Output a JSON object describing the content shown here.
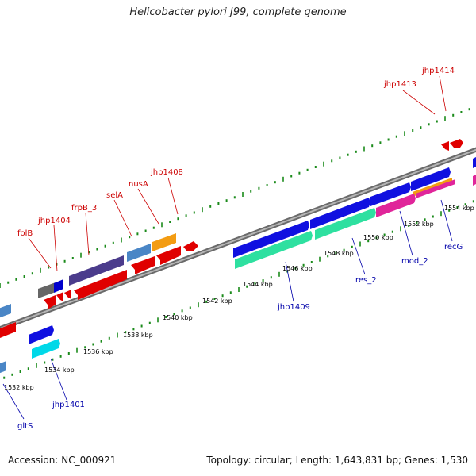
{
  "title": "Helicobacter pylori J99, complete genome",
  "footer": {
    "accession": "Accession: NC_000921",
    "summary": "Topology: circular; Length: 1,643,831 bp; Genes: 1,530"
  },
  "colors": {
    "backbone": "#8a8a8a",
    "tick": "#1a8a1a",
    "top_label": "#cc0000",
    "bottom_label": "#0000aa"
  },
  "kbp_ticks": [
    "1532 kbp",
    "1534 kbp",
    "1536 kbp",
    "1538 kbp",
    "1540 kbp",
    "1542 kbp",
    "1544 kbp",
    "1546 kbp",
    "1548 kbp",
    "1550 kbp",
    "1552 kbp",
    "1554 kbp"
  ],
  "top_gene_labels": [
    "folB",
    "jhp1404",
    "frpB_3",
    "selA",
    "nusA",
    "jhp1408",
    "jhp1413",
    "jhp1414"
  ],
  "bottom_gene_labels": [
    "gltS",
    "jhp1401",
    "jhp1409",
    "res_2",
    "mod_2",
    "recG"
  ]
}
